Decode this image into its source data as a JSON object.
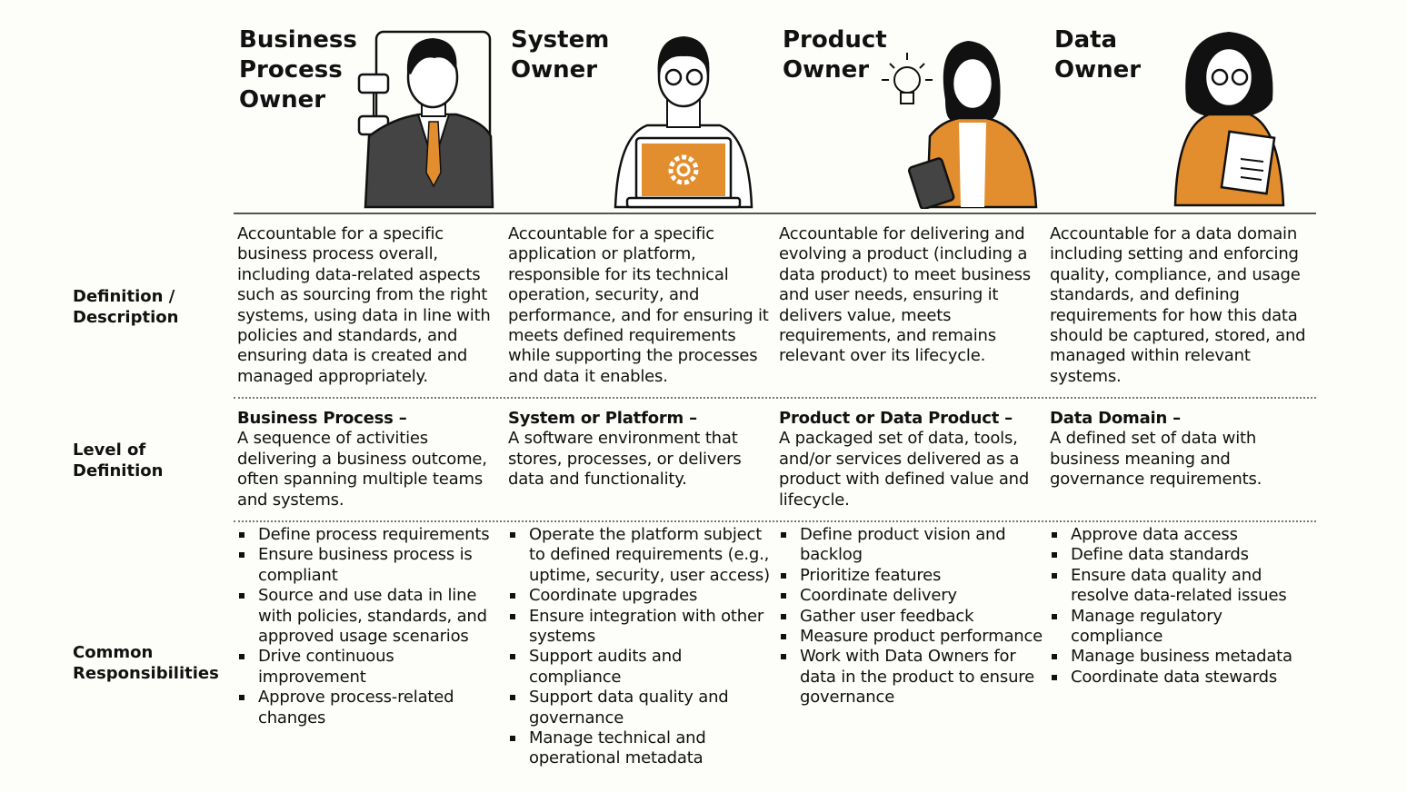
{
  "accent": "#e38e2e",
  "roles": [
    {
      "title": "Business\nProcess\nOwner",
      "icon": "businessman-flowchart-icon",
      "definition": "Accountable for a specific business process overall, including data-related aspects such as sourcing from the right systems, using data in line with policies and standards, and ensuring data is created and managed appropriately.",
      "level_term": "Business Process –",
      "level_text": "A sequence of activities delivering a business outcome, often spanning multiple teams and systems.",
      "responsibilities": [
        "Define process requirements",
        "Ensure business process is compliant",
        "Source and use data in line with policies, standards, and approved usage scenarios",
        "Drive continuous improvement",
        "Approve process-related changes"
      ]
    },
    {
      "title": "System\nOwner",
      "icon": "man-laptop-gear-icon",
      "definition": "Accountable for a specific application or platform, responsible for its technical operation, security, and performance, and for ensuring it meets defined requirements while supporting the processes and data it enables.",
      "level_term": "System or Platform –",
      "level_text": "A software environment that stores, processes, or delivers data and functionality.",
      "responsibilities": [
        "Operate the platform subject to defined requirements (e.g., uptime, security, user access)",
        "Coordinate upgrades",
        "Ensure integration with other systems",
        "Support audits and compliance",
        "Support data quality and governance",
        "Manage technical and operational metadata"
      ]
    },
    {
      "title": "Product\nOwner",
      "icon": "woman-tablet-lightbulb-icon",
      "definition": "Accountable for delivering and evolving a product (including a data product) to meet business and user needs, ensuring it delivers value, meets requirements, and remains relevant over its lifecycle.",
      "level_term": "Product or Data Product –",
      "level_text": "A packaged set of data, tools, and/or services delivered as a product with defined value and lifecycle.",
      "responsibilities": [
        "Define product vision and backlog",
        "Prioritize features",
        "Coordinate delivery",
        "Gather user feedback",
        "Measure product performance",
        "Work with Data Owners for data in the product to ensure governance"
      ]
    },
    {
      "title": "Data\nOwner",
      "icon": "woman-document-icon",
      "definition": "Accountable for a data domain including setting and enforcing quality, compliance, and usage standards, and defining requirements for how this data should be captured, stored, and managed within relevant systems.",
      "level_term": "Data Domain –",
      "level_text": "A defined set of data with business meaning and governance requirements.",
      "responsibilities": [
        "Approve data access",
        "Define data standards",
        "Ensure data quality and resolve data-related issues",
        "Manage regulatory compliance",
        "Manage business metadata",
        "Coordinate data stewards"
      ]
    }
  ],
  "row_labels": {
    "definition": "Definition /\nDescription",
    "level": "Level of\nDefinition",
    "responsibilities": "Common\nResponsibilities"
  }
}
